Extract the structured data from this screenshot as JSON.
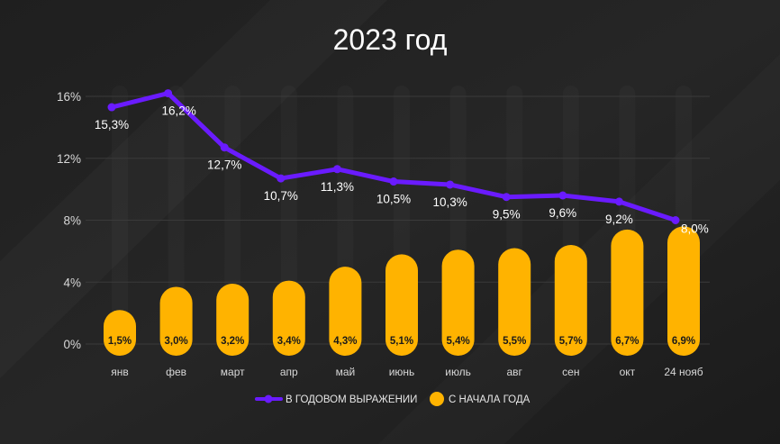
{
  "title": "2023 год",
  "colors": {
    "background": "#1c1c1c",
    "line": "#6a1bff",
    "bars": "#ffb300",
    "text": "#ffffff",
    "grid": "#3a3a3a",
    "muted_text": "#d8d8d8"
  },
  "legend": {
    "line_label": "В ГОДОВОМ ВЫРАЖЕНИИ",
    "bar_label": "С НАЧАЛА ГОДА"
  },
  "chart_data": {
    "type": "bar",
    "title": "2023 год",
    "categories": [
      "янв",
      "фев",
      "март",
      "апр",
      "май",
      "июнь",
      "июль",
      "авг",
      "сен",
      "окт",
      "24 нояб"
    ],
    "ylim": [
      0,
      16
    ],
    "yticks": [
      0,
      4,
      8,
      12,
      16
    ],
    "ytick_labels": [
      "0%",
      "4%",
      "8%",
      "12%",
      "16%"
    ],
    "grid": true,
    "legend_position": "bottom",
    "series": [
      {
        "name": "В ГОДОВОМ ВЫРАЖЕНИИ",
        "kind": "line",
        "values": [
          15.3,
          16.2,
          12.7,
          10.7,
          11.3,
          10.5,
          10.3,
          9.5,
          9.6,
          9.2,
          8.0
        ],
        "labels": [
          "15,3%",
          "16,2%",
          "12,7%",
          "10,7%",
          "11,3%",
          "10,5%",
          "10,3%",
          "9,5%",
          "9,6%",
          "9,2%",
          "8,0%"
        ]
      },
      {
        "name": "С НАЧАЛА ГОДА",
        "kind": "bar",
        "values": [
          1.5,
          3.0,
          3.2,
          3.4,
          4.3,
          5.1,
          5.4,
          5.5,
          5.7,
          6.7,
          6.9
        ],
        "labels": [
          "1,5%",
          "3,0%",
          "3,2%",
          "3,4%",
          "4,3%",
          "5,1%",
          "5,4%",
          "5,5%",
          "5,7%",
          "6,7%",
          "6,9%"
        ]
      }
    ]
  }
}
